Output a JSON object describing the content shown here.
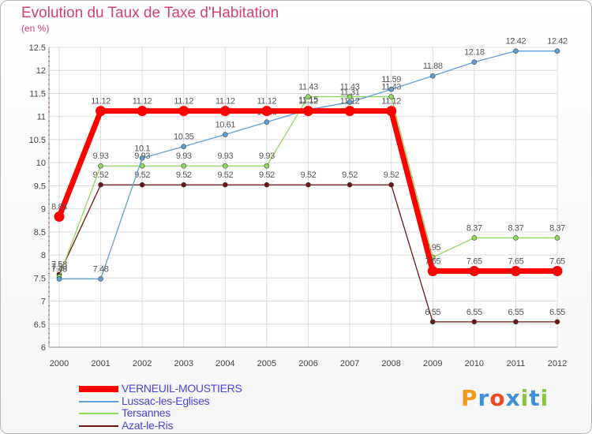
{
  "header": {
    "title": "Evolution du Taux de Taxe d'Habitation",
    "unit": "(en %)"
  },
  "chart_data": {
    "type": "line",
    "title": "Evolution du Taux de Taxe d'Habitation",
    "ylabel": "(en %)",
    "xlabel": "",
    "x": [
      "2000",
      "2001",
      "2002",
      "2003",
      "2004",
      "2005",
      "2006",
      "2007",
      "2008",
      "2009",
      "2010",
      "2011",
      "2012"
    ],
    "ylim": [
      6,
      12.5
    ],
    "yticks": [
      "6",
      "6.5",
      "7",
      "7.5",
      "8",
      "8.5",
      "9",
      "9.5",
      "10",
      "10.5",
      "11",
      "11.5",
      "12",
      "12.5"
    ],
    "grid": true,
    "legend": "bottom-left",
    "series": [
      {
        "name": "Azat-le-Ris",
        "color": "#6b1515",
        "values": [
          7.58,
          9.52,
          9.52,
          9.52,
          9.52,
          9.52,
          9.52,
          9.52,
          9.52,
          6.55,
          6.55,
          6.55,
          6.55
        ],
        "labels": [
          "7.58",
          "9.52",
          "9.52",
          "9.52",
          "9.52",
          "9.52",
          "9.52",
          "9.52",
          "9.52",
          "6.55",
          "6.55",
          "6.55",
          "6.55"
        ]
      },
      {
        "name": "Tersannes",
        "color": "#8fd85e",
        "values": [
          7.53,
          9.93,
          9.93,
          9.93,
          9.93,
          9.93,
          11.43,
          11.43,
          11.43,
          7.95,
          8.37,
          8.37,
          8.37
        ],
        "labels": [
          "7.53",
          "9.93",
          "9.93",
          "9.93",
          "9.93",
          "9.93",
          "11.43",
          "11.43",
          "11.43",
          "7.95",
          "8.37",
          "8.37",
          "8.37"
        ]
      },
      {
        "name": "Lussac-les-Eglises",
        "color": "#5f9ed6",
        "values": [
          7.48,
          7.48,
          10.1,
          10.35,
          10.61,
          10.88,
          11.15,
          11.31,
          11.59,
          11.88,
          12.18,
          12.42,
          12.42
        ],
        "labels": [
          "7.48",
          "7.48",
          "10.1",
          "10.35",
          "10.61",
          "10.88",
          "11.15",
          "11.31",
          "11.59",
          "11.88",
          "12.18",
          "12.42",
          "12.42"
        ]
      },
      {
        "name": "VERNEUIL-MOUSTIERS",
        "color": "#ff0000",
        "values": [
          8.83,
          11.12,
          11.12,
          11.12,
          11.12,
          11.12,
          11.12,
          11.12,
          11.12,
          7.65,
          7.65,
          7.65,
          7.65
        ],
        "labels": [
          "8.83",
          "11.12",
          "11.12",
          "11.12",
          "11.12",
          "11.12",
          "11.12",
          "11.12",
          "11.12",
          "7.65",
          "7.65",
          "7.65",
          "7.65"
        ]
      }
    ],
    "legend_order": [
      "VERNEUIL-MOUSTIERS",
      "Lussac-les-Eglises",
      "Tersannes",
      "Azat-le-Ris"
    ]
  },
  "brand": {
    "letters": [
      "P",
      "r",
      "o",
      "x",
      "i",
      "t",
      "i"
    ],
    "colors": [
      "#f39a1b",
      "#3d8fd6",
      "#e94b26",
      "#3d8fd6",
      "#8bc540",
      "#3d8fd6",
      "#8bc540"
    ]
  }
}
